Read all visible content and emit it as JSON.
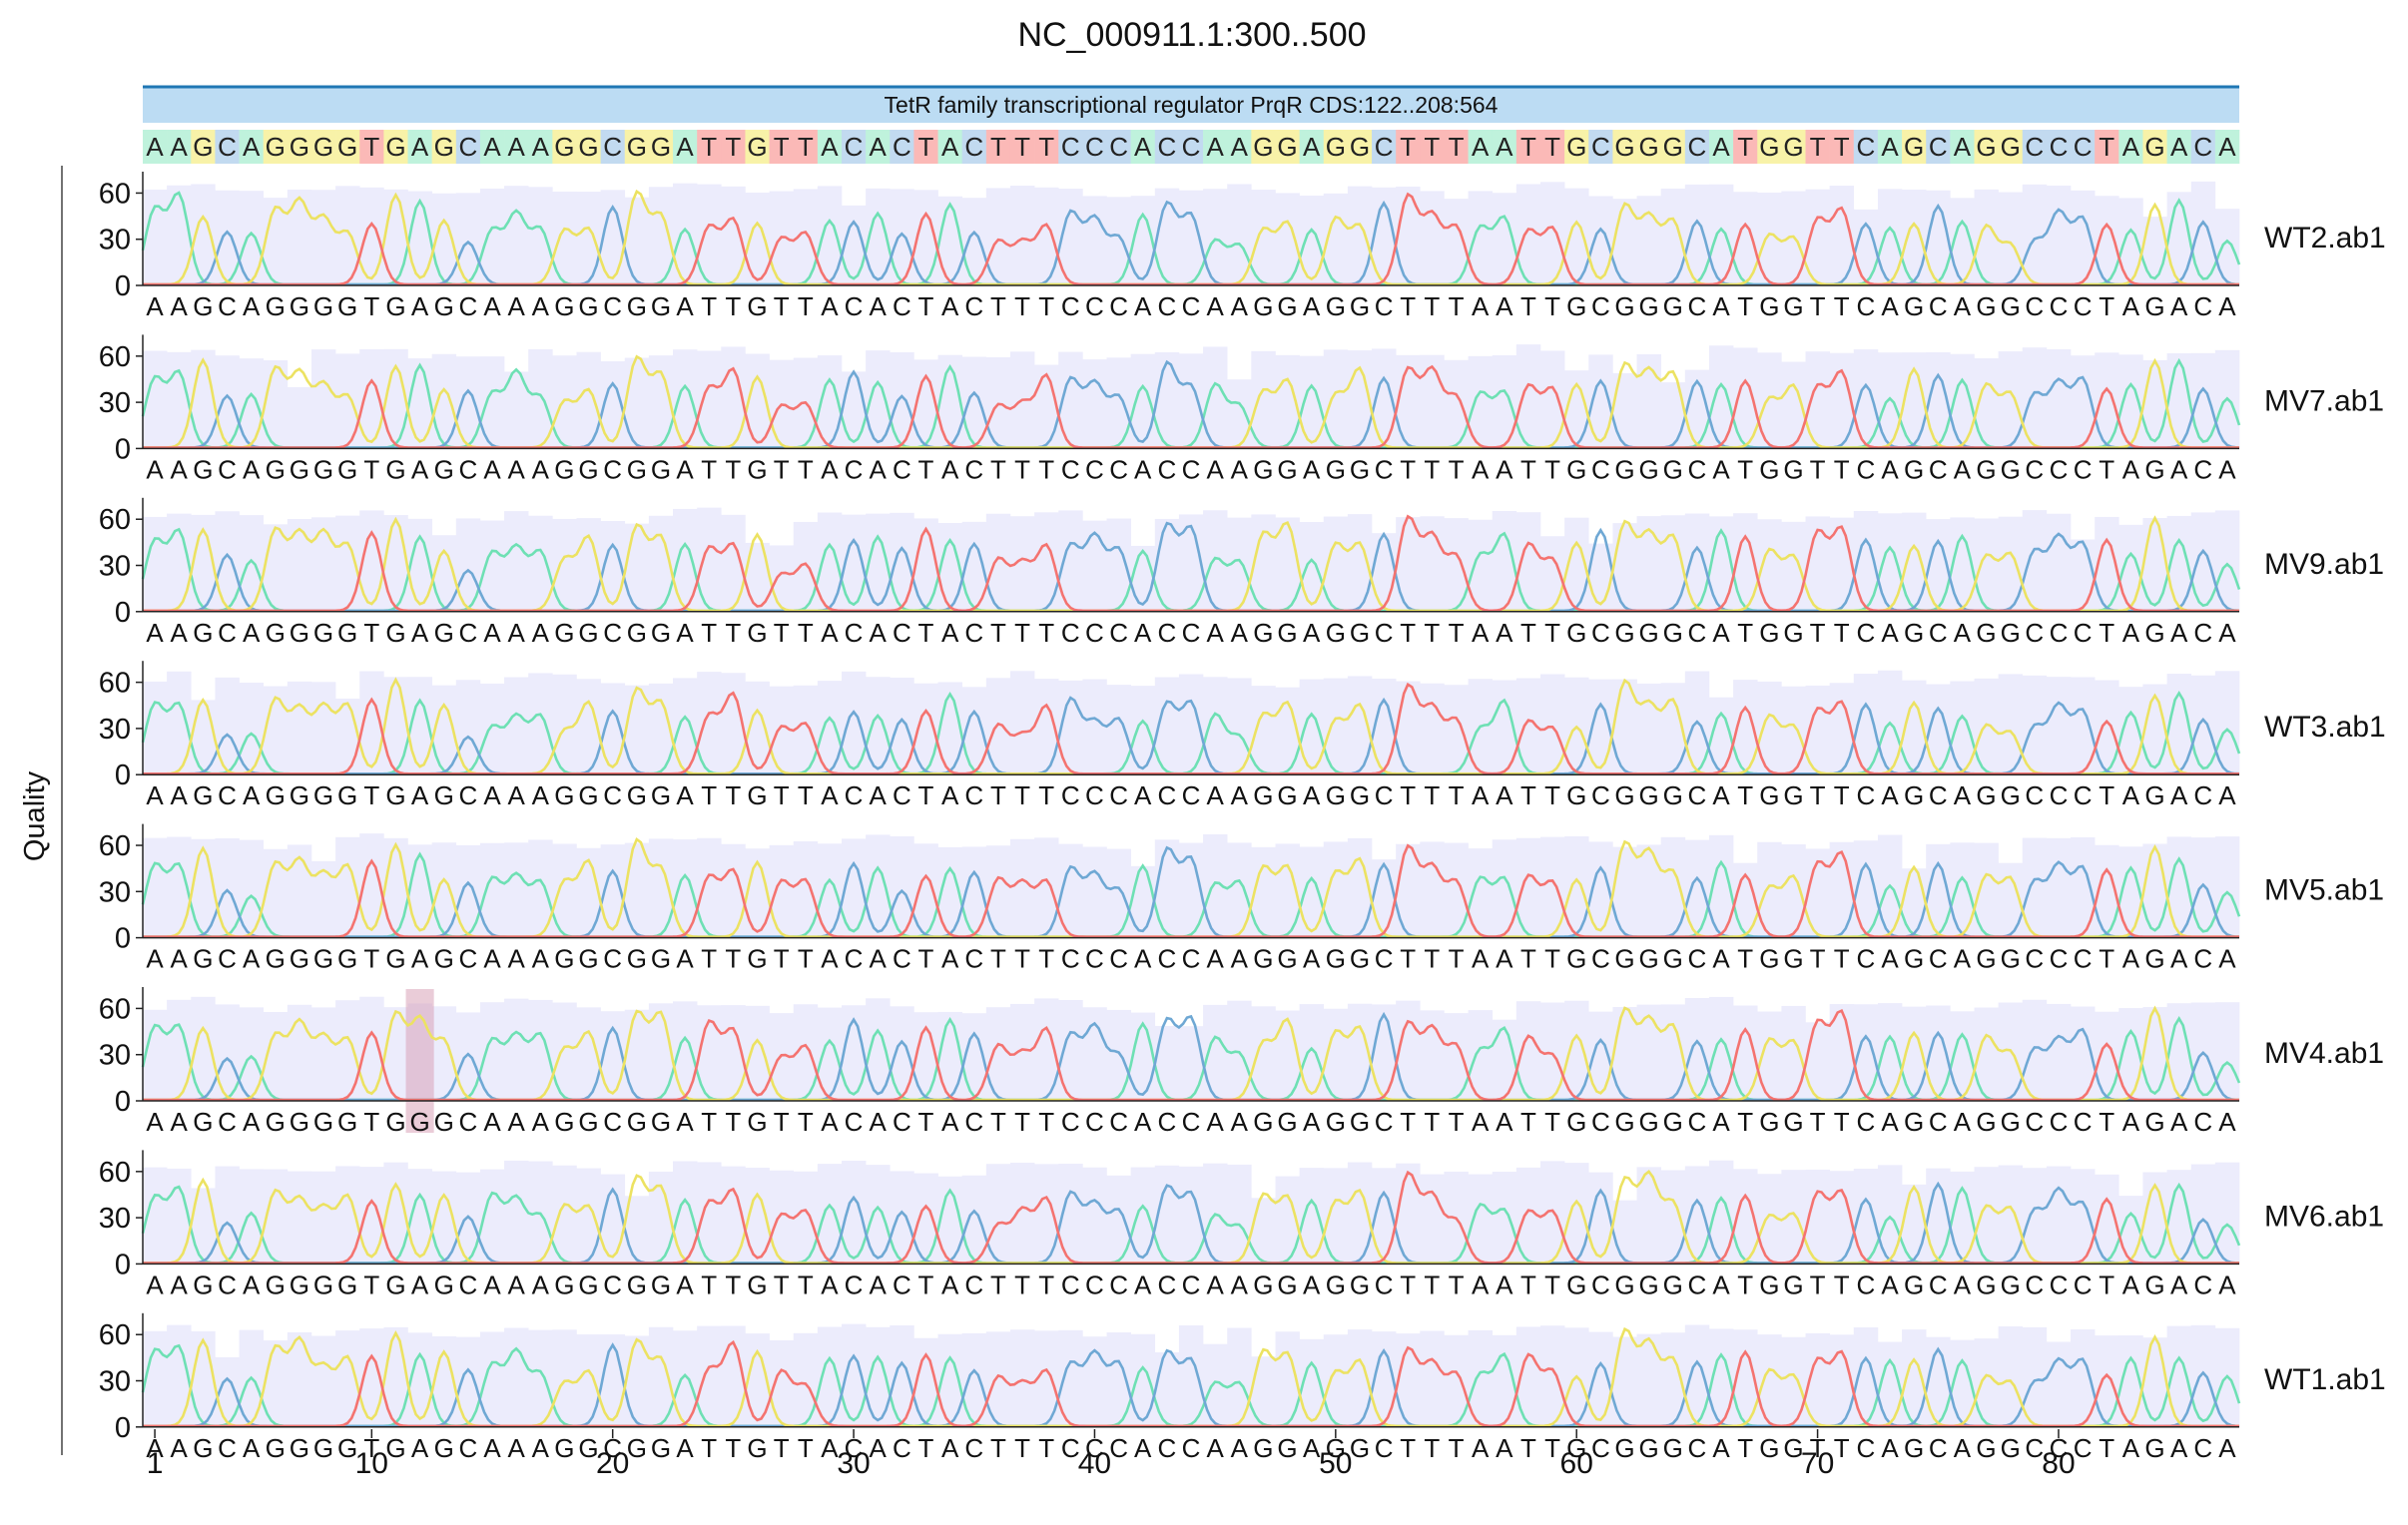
{
  "chart_data": {
    "type": "line",
    "title": "NC_000911.1:300..500",
    "ylabel": "Quality",
    "xlabel": "",
    "x_ticks": [
      1,
      10,
      20,
      30,
      40,
      50,
      60,
      70,
      80
    ],
    "xlim": [
      1,
      87
    ],
    "y_ticks": [
      0,
      30,
      60
    ],
    "ylim": [
      0,
      70
    ],
    "feature": {
      "label": "TetR family transcriptional regulator PrqR CDS:122..208:564",
      "color": "#bcdcf3"
    },
    "reference_sequence": "AAGCAGGGGTGAGCAAAGGCGGATTGTTACACTACTTTCCCACCAAGGAGGCTTTAATTGCGGGCATGGTTCAGCAGGCCCTAGACA",
    "base_colors": {
      "A": "#6ee0b4",
      "C": "#6fa8d4",
      "G": "#ece262",
      "T": "#f47370"
    },
    "reference_tint": {
      "A": "#bff2dc",
      "C": "#c2daf0",
      "G": "#f8f2a8",
      "T": "#fbb9b7"
    },
    "quality_color": "#ececfc",
    "mismatch_color": "#d9a3b8",
    "traces": [
      {
        "name": "WT2.ab1",
        "called_sequence": "AAGCAGGGGTGAGCAAAGGCGGATTGTTACACTACTTTCCCACCAAGGAGGCTTTAATTGCGGGCATGGTTCAGCAGGCCCTAGACA",
        "mismatch_positions": []
      },
      {
        "name": "MV7.ab1",
        "called_sequence": "AAGCAGGGGTGAGCAAAGGCGGATTGTTACACTACTTTCCCACCAAGGAGGCTTTAATTGCGGGCATGGTTCAGCAGGCCCTAGACA",
        "mismatch_positions": []
      },
      {
        "name": "MV9.ab1",
        "called_sequence": "AAGCAGGGGTGAGCAAAGGCGGATTGTTACACTACTTTCCCACCAAGGAGGCTTTAATTGCGGGCATGGTTCAGCAGGCCCTAGACA",
        "mismatch_positions": []
      },
      {
        "name": "WT3.ab1",
        "called_sequence": "AAGCAGGGGTGAGCAAAGGCGGATTGTTACACTACTTTCCCACCAAGGAGGCTTTAATTGCGGGCATGGTTCAGCAGGCCCTAGACA",
        "mismatch_positions": []
      },
      {
        "name": "MV5.ab1",
        "called_sequence": "AAGCAGGGGTGAGCAAAGGCGGATTGTTACACTACTTTCCCACCAAGGAGGCTTTAATTGCGGGCATGGTTCAGCAGGCCCTAGACA",
        "mismatch_positions": []
      },
      {
        "name": "MV4.ab1",
        "called_sequence": "AAGCAGGGGTGGGCAAAGGCGGATTGTTACACTACTTTCCCACCAAGGAGGCTTTAATTGCGGGCATGGTTCAGCAGGCCCTAGACA",
        "mismatch_positions": [
          12
        ]
      },
      {
        "name": "MV6.ab1",
        "called_sequence": "AAGCAGGGGTGAGCAAAGGCGGATTGTTACACTACTTTCCCACCAAGGAGGCTTTAATTGCGGGCATGGTTCAGCAGGCCCTAGACA",
        "mismatch_positions": []
      },
      {
        "name": "WT1.ab1",
        "called_sequence": "AAGCAGGGGTGAGCAAAGGCGGATTGTTACACTACTTTCCCACCAAGGAGGCTTTAATTGCGGGCATGGTTCAGCAGGCCCTAGACA",
        "mismatch_positions": []
      }
    ]
  }
}
